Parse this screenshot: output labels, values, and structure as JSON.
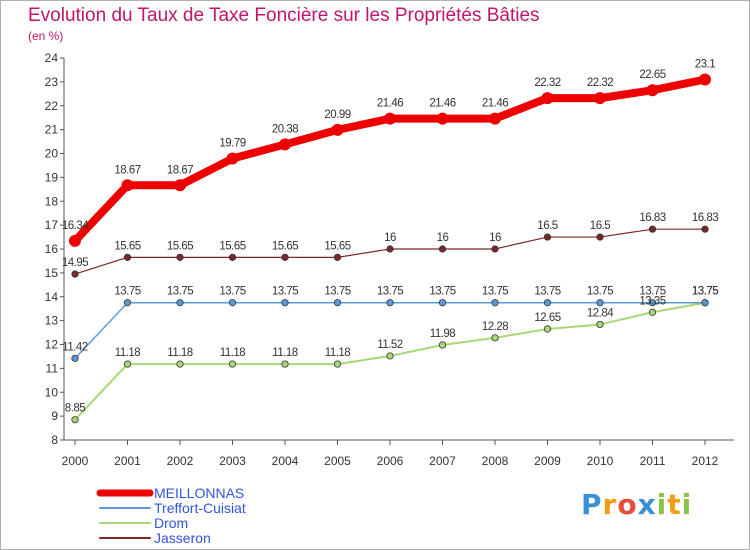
{
  "title": "Evolution du Taux de Taxe Foncière sur les Propriétés Bâties",
  "subtitle": "(en %)",
  "logo": {
    "letters": [
      "P",
      "r",
      "o",
      "x",
      "i",
      "t",
      "i"
    ],
    "colors": [
      "#3b8fd6",
      "#f39c12",
      "#e74c3c",
      "#3b8fd6",
      "#8bc34a",
      "#f39c12",
      "#8bc34a"
    ]
  },
  "chart_data": {
    "type": "line",
    "x": [
      "2000",
      "2001",
      "2002",
      "2003",
      "2004",
      "2005",
      "2006",
      "2007",
      "2008",
      "2009",
      "2010",
      "2011",
      "2012"
    ],
    "ylim": [
      8,
      24
    ],
    "yticks": [
      "8",
      "9",
      "10",
      "11",
      "12",
      "13",
      "14",
      "15",
      "16",
      "17",
      "18",
      "19",
      "20",
      "21",
      "22",
      "23",
      "24"
    ],
    "grid": false,
    "legend_position": "bottom-left",
    "series": [
      {
        "name": "MEILLONNAS",
        "color": "#ee0000",
        "width": 8,
        "marker": 6,
        "labelcolor": "#333333",
        "values": [
          16.34,
          18.67,
          18.67,
          19.79,
          20.38,
          20.99,
          21.46,
          21.46,
          21.46,
          22.32,
          22.32,
          22.65,
          23.1
        ],
        "labels": [
          "16.34",
          "18.67",
          "18.67",
          "19.79",
          "20.38",
          "20.99",
          "21.46",
          "21.46",
          "21.46",
          "22.32",
          "22.32",
          "22.65",
          "23.1"
        ]
      },
      {
        "name": "Treffort-Cuisiat",
        "color": "#5b9bd5",
        "width": 1.5,
        "marker": 3.2,
        "labelcolor": "#333333",
        "values": [
          11.42,
          13.75,
          13.75,
          13.75,
          13.75,
          13.75,
          13.75,
          13.75,
          13.75,
          13.75,
          13.75,
          13.75,
          13.75
        ],
        "labels": [
          "11.42",
          "13.75",
          "13.75",
          "13.75",
          "13.75",
          "13.75",
          "13.75",
          "13.75",
          "13.75",
          "13.75",
          "13.75",
          "13.75",
          "13.75"
        ]
      },
      {
        "name": "Drom",
        "color": "#a8d878",
        "width": 2,
        "marker": 3.2,
        "labelcolor": "#333333",
        "values": [
          8.85,
          11.18,
          11.18,
          11.18,
          11.18,
          11.18,
          11.52,
          11.98,
          12.28,
          12.65,
          12.84,
          13.35,
          13.75
        ],
        "labels": [
          "8.85",
          "11.18",
          "11.18",
          "11.18",
          "11.18",
          "11.18",
          "11.52",
          "11.98",
          "12.28",
          "12.65",
          "12.84",
          "13.35",
          "13.75"
        ]
      },
      {
        "name": "Jasseron",
        "color": "#7a2828",
        "width": 1.2,
        "marker": 3.2,
        "labelcolor": "#333333",
        "values": [
          14.95,
          15.65,
          15.65,
          15.65,
          15.65,
          15.65,
          16,
          16,
          16,
          16.5,
          16.5,
          16.83,
          16.83
        ],
        "labels": [
          "14.95",
          "15.65",
          "15.65",
          "15.65",
          "15.65",
          "15.65",
          "16",
          "16",
          "16",
          "16.5",
          "16.5",
          "16.83",
          "16.83"
        ]
      }
    ],
    "legend": [
      {
        "name": "MEILLONNAS",
        "color": "#ee0000",
        "textcolor": "#3355dd"
      },
      {
        "name": "Treffort-Cuisiat",
        "color": "#5b9bd5",
        "textcolor": "#3355dd"
      },
      {
        "name": "Drom",
        "color": "#a8d878",
        "textcolor": "#3355dd"
      },
      {
        "name": "Jasseron",
        "color": "#7a2828",
        "textcolor": "#3355dd"
      }
    ]
  }
}
